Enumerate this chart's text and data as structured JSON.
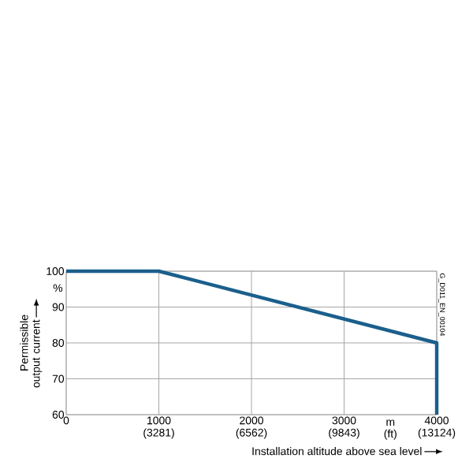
{
  "chart_data": {
    "type": "line",
    "xlabel": "Installation altitude above sea level",
    "ylabel": "Permissible output current",
    "x": [
      0,
      1000,
      4000,
      4000
    ],
    "series": [
      {
        "color": "#1b5f8c",
        "values": [
          100,
          100,
          80,
          60
        ]
      }
    ],
    "xlim": [
      0,
      4000
    ],
    "xticks": [
      0,
      1000,
      2000,
      3000,
      4000
    ],
    "x2lim": [
      0,
      13124
    ],
    "x2ticks": [
      {
        "value": 3281,
        "label": "(3281)"
      },
      {
        "value": 6562,
        "label": "(6562)"
      },
      {
        "value": 9843,
        "label": "(9843)"
      },
      {
        "value": 13124,
        "label": "(13124)"
      }
    ],
    "ylim": [
      60,
      100
    ],
    "yticks": [
      60,
      70,
      80,
      90,
      100
    ],
    "grid": true,
    "annotations": [
      "%",
      "m (ft)",
      "G_D011_EN_00104"
    ]
  }
}
